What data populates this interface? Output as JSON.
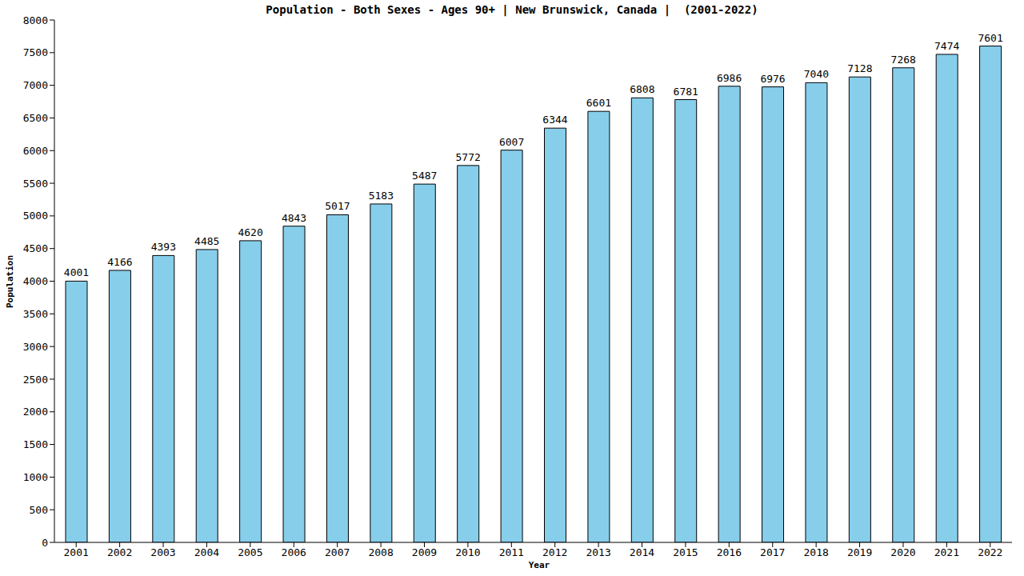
{
  "chart_data": {
    "type": "bar",
    "title": "Population - Both Sexes - Ages 90+ | New Brunswick, Canada |  (2001-2022)",
    "xlabel": "Year",
    "ylabel": "Population",
    "categories": [
      "2001",
      "2002",
      "2003",
      "2004",
      "2005",
      "2006",
      "2007",
      "2008",
      "2009",
      "2010",
      "2011",
      "2012",
      "2013",
      "2014",
      "2015",
      "2016",
      "2017",
      "2018",
      "2019",
      "2020",
      "2021",
      "2022"
    ],
    "values": [
      4001,
      4166,
      4393,
      4485,
      4620,
      4843,
      5017,
      5183,
      5487,
      5772,
      6007,
      6344,
      6601,
      6808,
      6781,
      6986,
      6976,
      7040,
      7128,
      7268,
      7474,
      7601
    ],
    "color": "#87ceeb",
    "ylim": [
      0,
      8000
    ],
    "yticks": [
      0,
      500,
      1000,
      1500,
      2000,
      2500,
      3000,
      3500,
      4000,
      4500,
      5000,
      5500,
      6000,
      6500,
      7000,
      7500,
      8000
    ],
    "grid": false,
    "data_labels": true
  }
}
